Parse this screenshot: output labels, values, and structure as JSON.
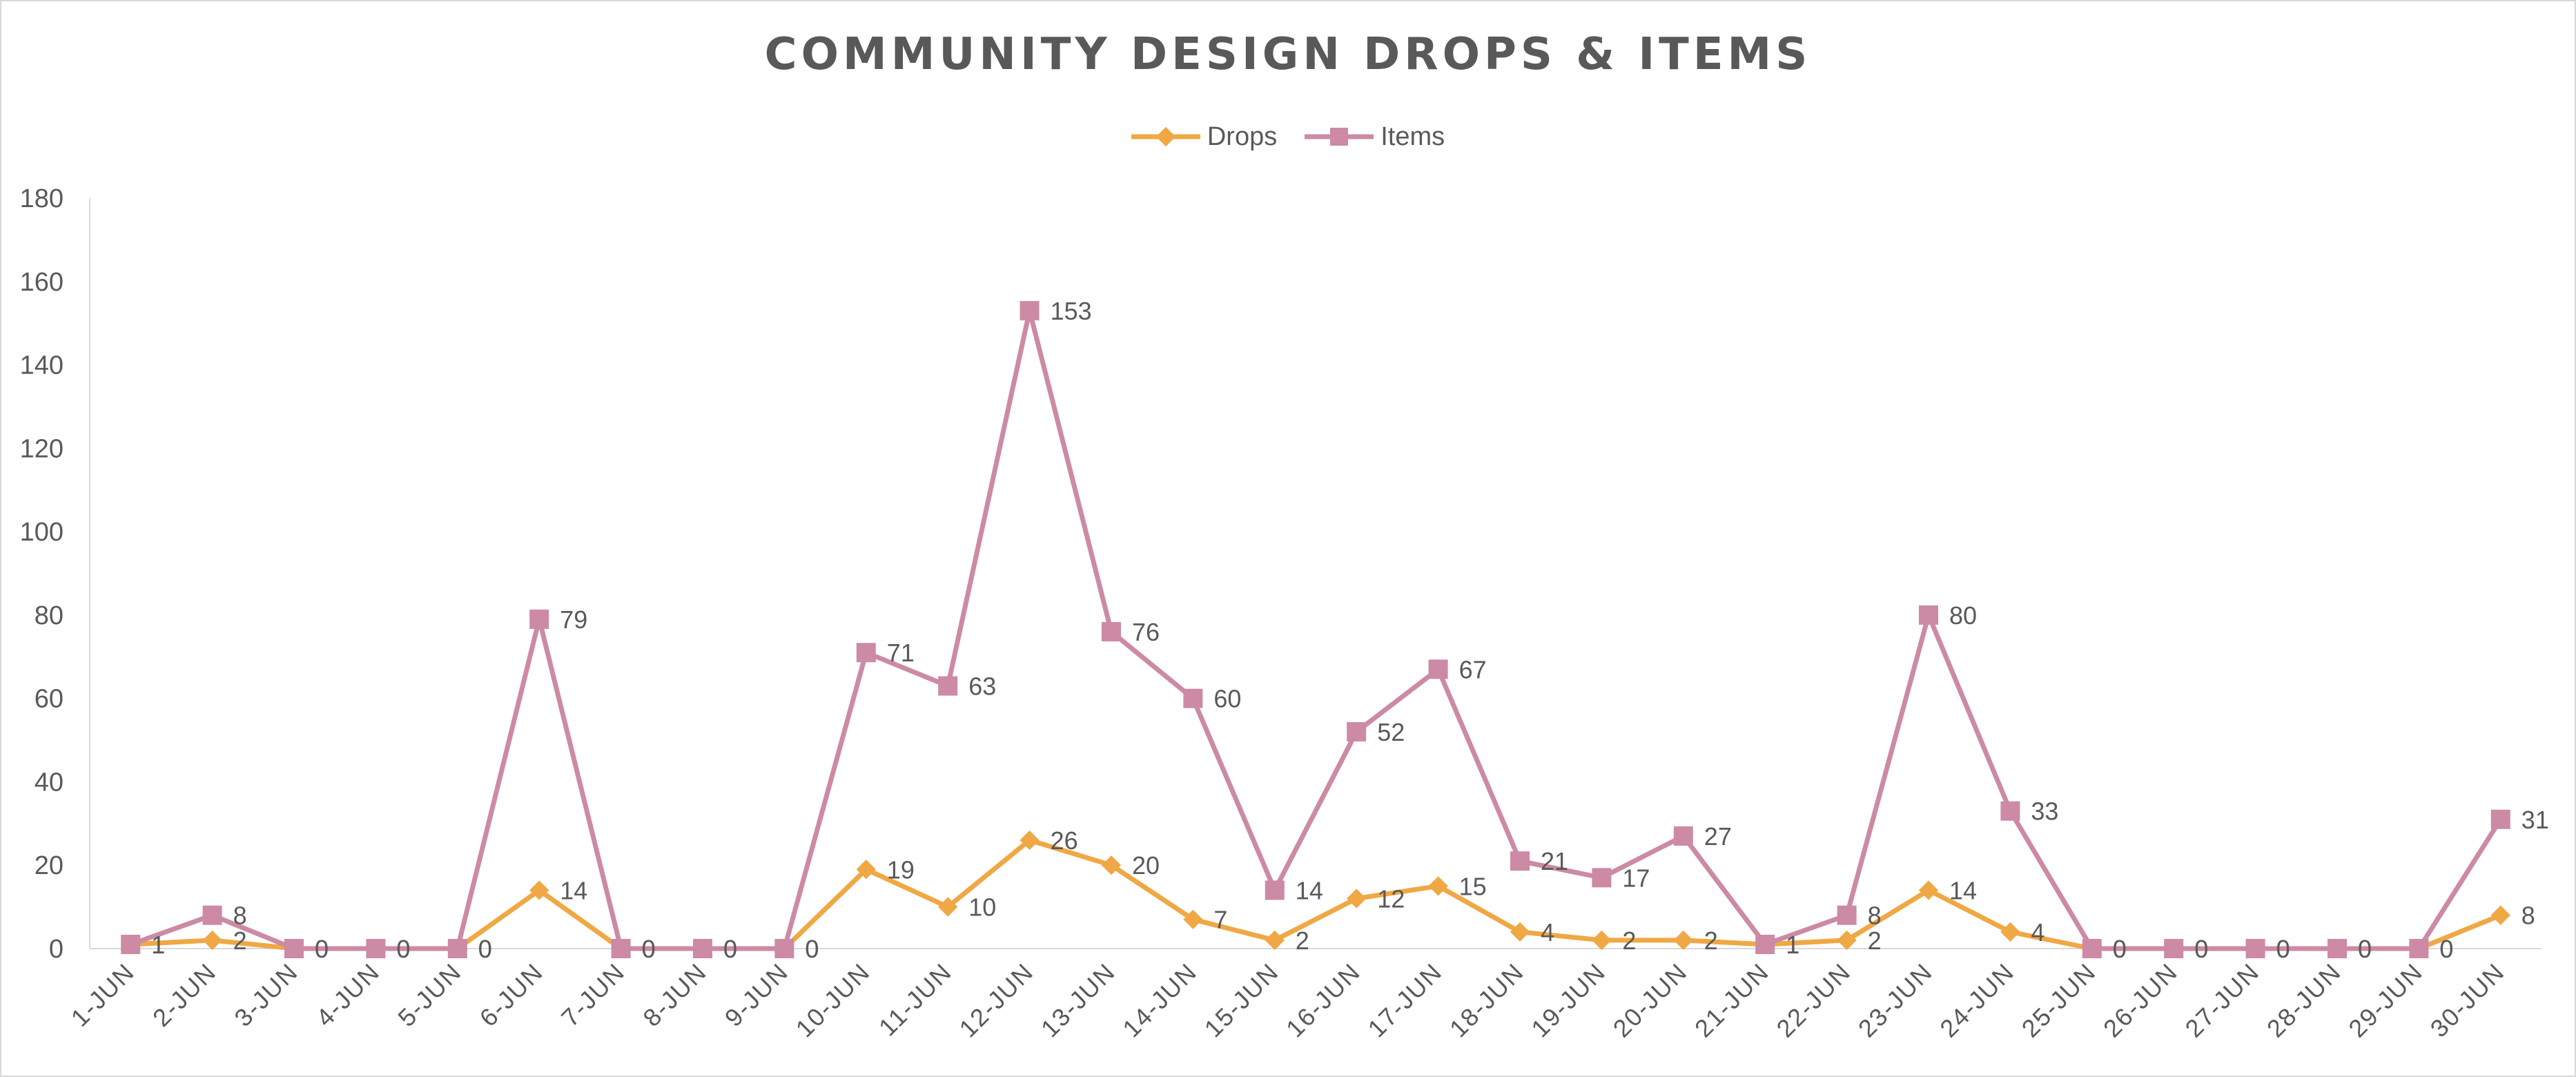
{
  "chart_data": {
    "type": "line",
    "title": "COMMUNITY DESIGN DROPS & ITEMS",
    "xlabel": "",
    "ylabel": "",
    "ylim": [
      0,
      180
    ],
    "yticks": [
      0,
      20,
      40,
      60,
      80,
      100,
      120,
      140,
      160,
      180
    ],
    "grid": false,
    "legend_position": "top",
    "categories": [
      "1-JUN",
      "2-JUN",
      "3-JUN",
      "4-JUN",
      "5-JUN",
      "6-JUN",
      "7-JUN",
      "8-JUN",
      "9-JUN",
      "10-JUN",
      "11-JUN",
      "12-JUN",
      "13-JUN",
      "14-JUN",
      "15-JUN",
      "16-JUN",
      "17-JUN",
      "18-JUN",
      "19-JUN",
      "20-JUN",
      "21-JUN",
      "22-JUN",
      "23-JUN",
      "24-JUN",
      "25-JUN",
      "26-JUN",
      "27-JUN",
      "28-JUN",
      "29-JUN",
      "30-JUN"
    ],
    "series": [
      {
        "name": "Drops",
        "color": "#f0a844",
        "marker": "diamond",
        "values": [
          1,
          2,
          0,
          0,
          0,
          14,
          0,
          0,
          0,
          19,
          10,
          26,
          20,
          7,
          2,
          12,
          15,
          4,
          2,
          2,
          1,
          2,
          14,
          4,
          0,
          0,
          0,
          0,
          0,
          8
        ]
      },
      {
        "name": "Items",
        "color": "#cc8aa5",
        "marker": "square",
        "values": [
          1,
          8,
          0,
          0,
          0,
          79,
          0,
          0,
          0,
          71,
          63,
          153,
          76,
          60,
          14,
          52,
          67,
          21,
          17,
          27,
          1,
          8,
          80,
          33,
          0,
          0,
          0,
          0,
          0,
          31
        ]
      }
    ]
  }
}
